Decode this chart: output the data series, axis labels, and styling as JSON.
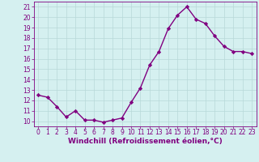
{
  "hours": [
    0,
    1,
    2,
    3,
    4,
    5,
    6,
    7,
    8,
    9,
    10,
    11,
    12,
    13,
    14,
    15,
    16,
    17,
    18,
    19,
    20,
    21,
    22,
    23
  ],
  "values": [
    12.5,
    12.3,
    11.4,
    10.4,
    11.0,
    10.1,
    10.1,
    9.9,
    10.1,
    10.3,
    11.8,
    13.2,
    15.4,
    16.7,
    18.9,
    20.2,
    21.0,
    19.8,
    19.4,
    18.2,
    17.2,
    16.7,
    16.7,
    16.5
  ],
  "line_color": "#800080",
  "marker": "D",
  "marker_size": 2.2,
  "bg_color": "#d5f0f0",
  "grid_color": "#b8d8d8",
  "xlabel": "Windchill (Refroidissement éolien,°C)",
  "ylim": [
    9.5,
    21.5
  ],
  "yticks": [
    10,
    11,
    12,
    13,
    14,
    15,
    16,
    17,
    18,
    19,
    20,
    21
  ],
  "xlim": [
    -0.5,
    23.5
  ],
  "xticks": [
    0,
    1,
    2,
    3,
    4,
    5,
    6,
    7,
    8,
    9,
    10,
    11,
    12,
    13,
    14,
    15,
    16,
    17,
    18,
    19,
    20,
    21,
    22,
    23
  ],
  "xlabel_fontsize": 6.5,
  "tick_fontsize": 5.5,
  "line_width": 1.0
}
